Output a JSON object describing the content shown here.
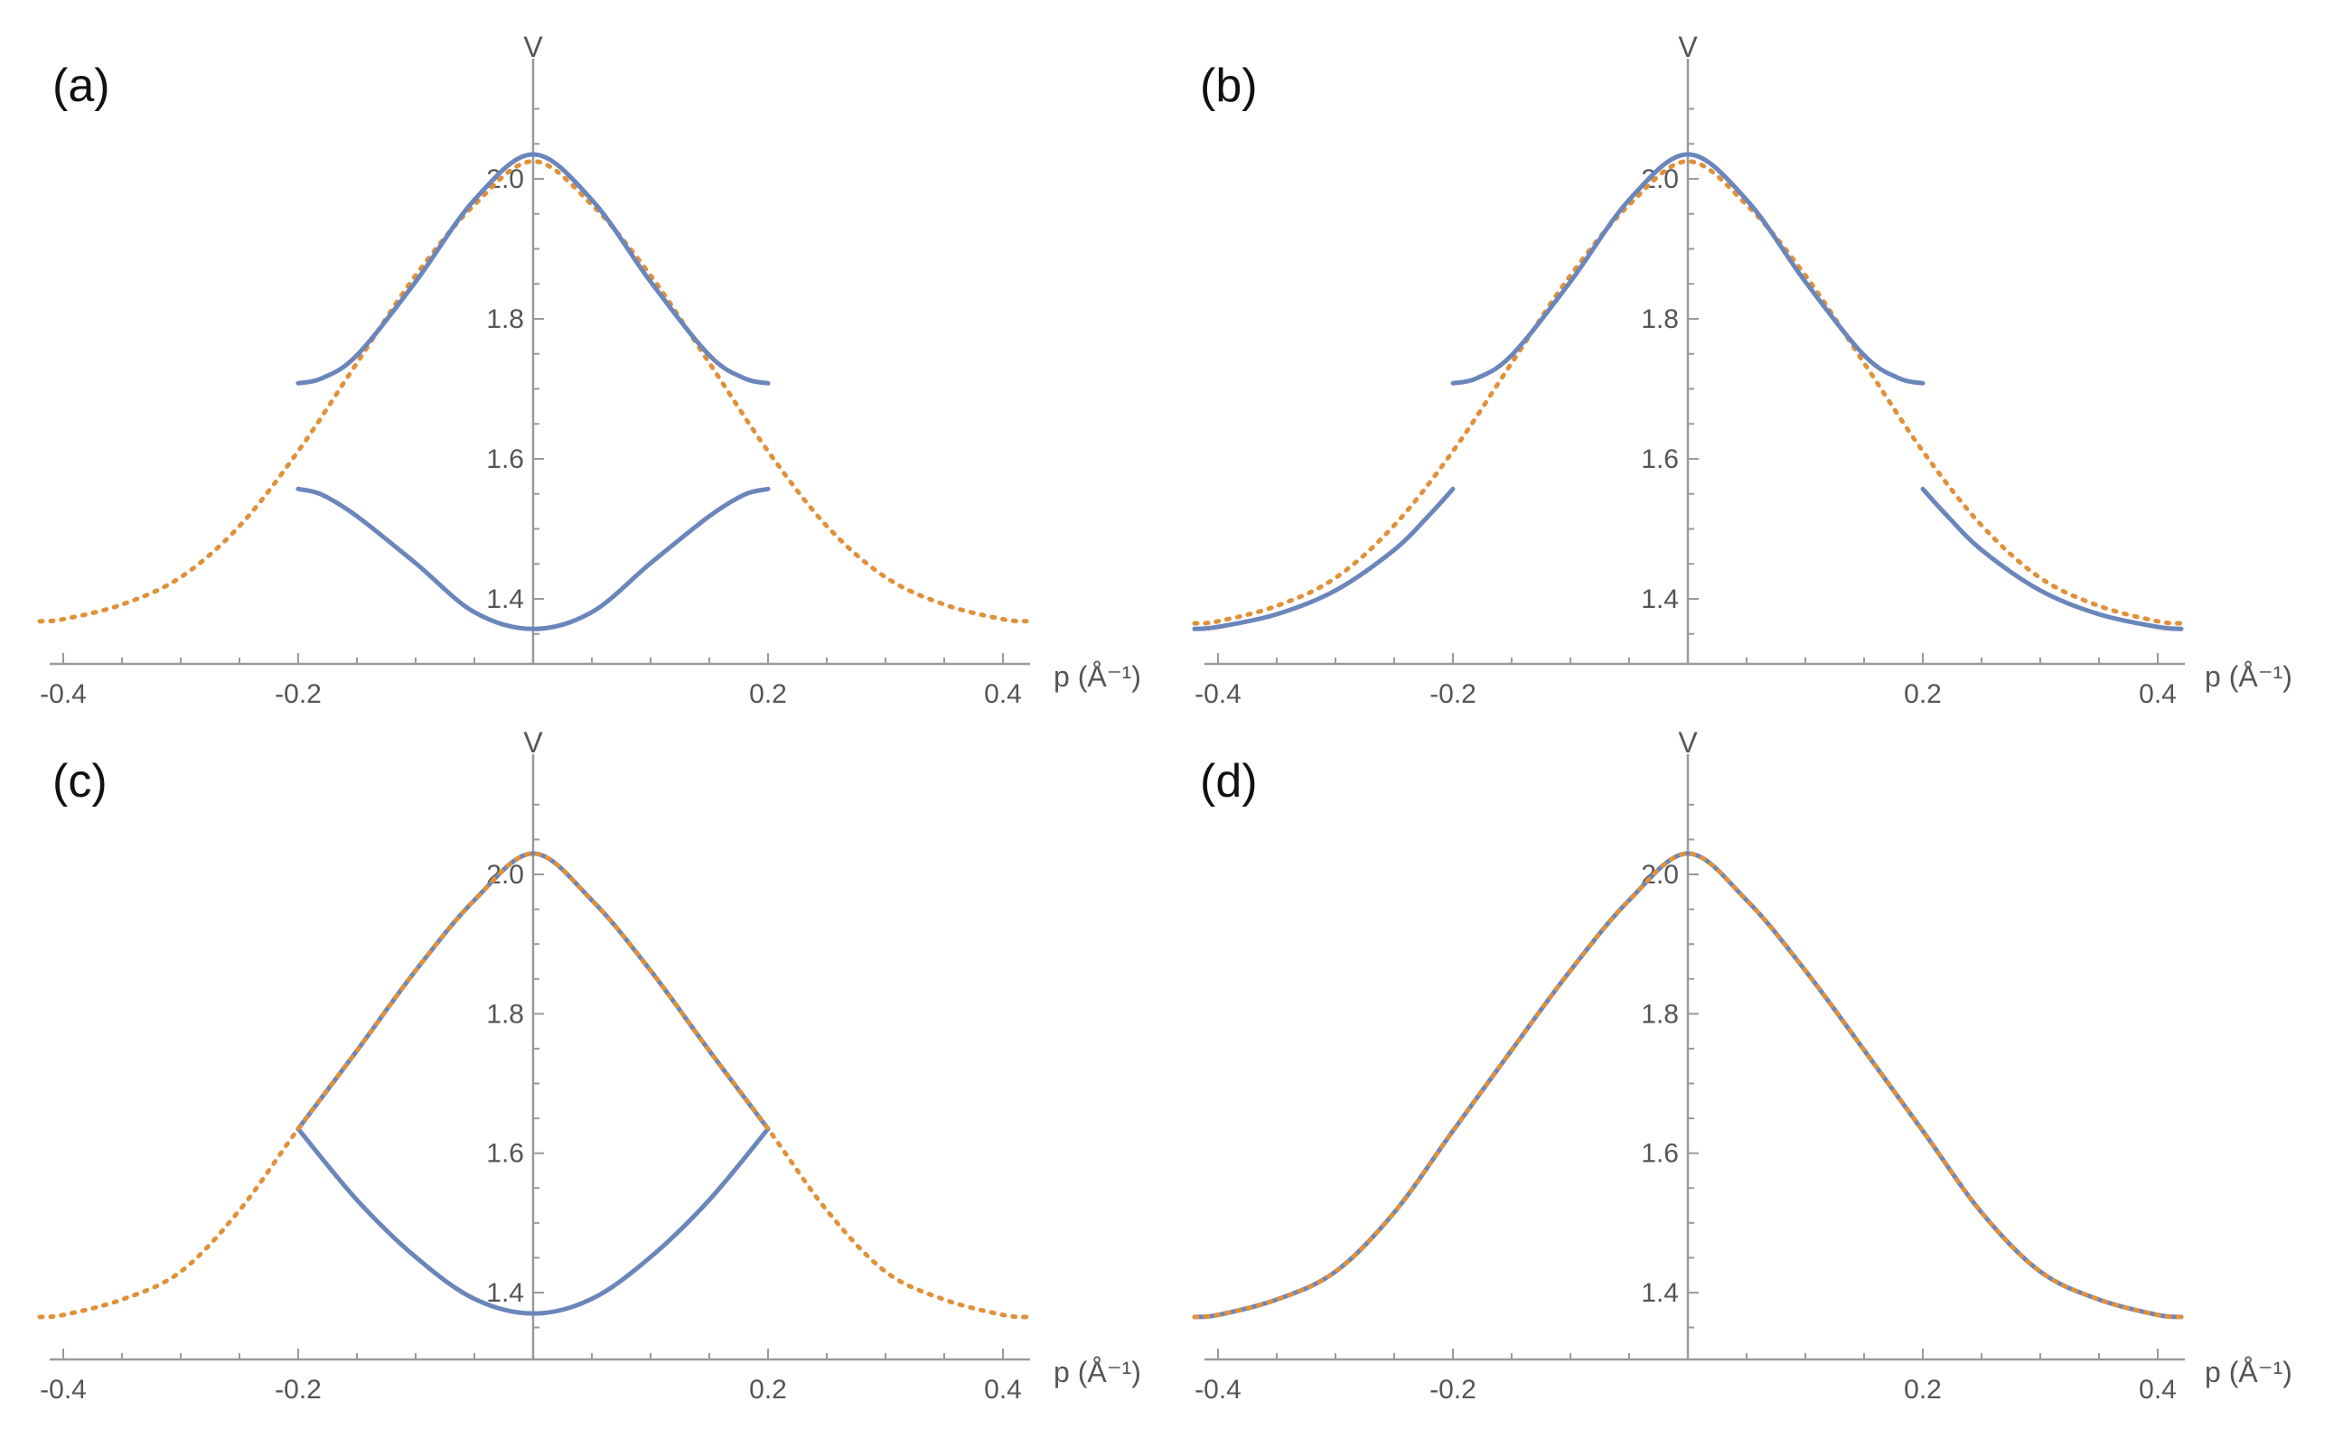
{
  "colors": {
    "blue_solid": "#6a86bb",
    "orange_dotted": "#e0913a",
    "axis": "#9a9a9a",
    "tick_text": "#555555",
    "panel_letter": "#111111"
  },
  "chart_data": [
    {
      "type": "line",
      "panel_label": "(a)",
      "xlabel": "p (Å⁻¹)",
      "ylabel": "V",
      "xlim": [
        -0.42,
        0.42
      ],
      "ylim": [
        1.33,
        2.12
      ],
      "x_ticks": [
        "-0.4",
        "-0.2",
        "0.2",
        "0.4"
      ],
      "y_ticks": [
        "1.4",
        "1.6",
        "1.8",
        "2.0"
      ],
      "grid": false,
      "series": [
        {
          "style": "dotted",
          "color": "#e0913a",
          "segments": [
            [
              [
                -0.42,
                1.368
              ],
              [
                -0.4,
                1.371
              ],
              [
                -0.35,
                1.392
              ],
              [
                -0.3,
                1.431
              ],
              [
                -0.25,
                1.504
              ],
              [
                -0.2,
                1.611
              ],
              [
                -0.15,
                1.737
              ],
              [
                -0.1,
                1.862
              ],
              [
                -0.05,
                1.963
              ],
              [
                0.0,
                2.025
              ],
              [
                0.05,
                1.963
              ],
              [
                0.1,
                1.862
              ],
              [
                0.15,
                1.737
              ],
              [
                0.2,
                1.611
              ],
              [
                0.25,
                1.504
              ],
              [
                0.3,
                1.431
              ],
              [
                0.35,
                1.392
              ],
              [
                0.4,
                1.371
              ],
              [
                0.42,
                1.368
              ]
            ]
          ]
        },
        {
          "style": "solid",
          "color": "#6a86bb",
          "segments": [
            [
              [
                -0.2,
                1.708
              ],
              [
                -0.18,
                1.715
              ],
              [
                -0.15,
                1.748
              ],
              [
                -0.1,
                1.853
              ],
              [
                -0.05,
                1.97
              ],
              [
                0.0,
                2.035
              ],
              [
                0.05,
                1.97
              ],
              [
                0.1,
                1.853
              ],
              [
                0.15,
                1.748
              ],
              [
                0.18,
                1.715
              ],
              [
                0.2,
                1.708
              ]
            ],
            [
              [
                -0.2,
                1.557
              ],
              [
                -0.18,
                1.549
              ],
              [
                -0.15,
                1.518
              ],
              [
                -0.1,
                1.451
              ],
              [
                -0.05,
                1.381
              ],
              [
                0.0,
                1.357
              ],
              [
                0.05,
                1.381
              ],
              [
                0.1,
                1.451
              ],
              [
                0.15,
                1.518
              ],
              [
                0.18,
                1.549
              ],
              [
                0.2,
                1.557
              ]
            ]
          ]
        }
      ]
    },
    {
      "type": "line",
      "panel_label": "(b)",
      "xlabel": "p (Å⁻¹)",
      "ylabel": "V",
      "xlim": [
        -0.42,
        0.42
      ],
      "ylim": [
        1.33,
        2.12
      ],
      "x_ticks": [
        "-0.4",
        "-0.2",
        "0.2",
        "0.4"
      ],
      "y_ticks": [
        "1.4",
        "1.6",
        "1.8",
        "2.0"
      ],
      "grid": false,
      "series": [
        {
          "style": "dotted",
          "color": "#e0913a",
          "segments": [
            [
              [
                -0.42,
                1.365
              ],
              [
                -0.4,
                1.368
              ],
              [
                -0.35,
                1.39
              ],
              [
                -0.3,
                1.43
              ],
              [
                -0.25,
                1.505
              ],
              [
                -0.2,
                1.611
              ],
              [
                -0.15,
                1.737
              ],
              [
                -0.1,
                1.862
              ],
              [
                -0.05,
                1.963
              ],
              [
                0.0,
                2.025
              ],
              [
                0.05,
                1.963
              ],
              [
                0.1,
                1.862
              ],
              [
                0.15,
                1.737
              ],
              [
                0.2,
                1.611
              ],
              [
                0.25,
                1.505
              ],
              [
                0.3,
                1.43
              ],
              [
                0.35,
                1.39
              ],
              [
                0.4,
                1.368
              ],
              [
                0.42,
                1.365
              ]
            ]
          ]
        },
        {
          "style": "solid",
          "color": "#6a86bb",
          "segments": [
            [
              [
                -0.2,
                1.708
              ],
              [
                -0.18,
                1.715
              ],
              [
                -0.15,
                1.748
              ],
              [
                -0.1,
                1.853
              ],
              [
                -0.05,
                1.97
              ],
              [
                0.0,
                2.035
              ],
              [
                0.05,
                1.97
              ],
              [
                0.1,
                1.853
              ],
              [
                0.15,
                1.748
              ],
              [
                0.18,
                1.715
              ],
              [
                0.2,
                1.708
              ]
            ],
            [
              [
                -0.42,
                1.357
              ],
              [
                -0.4,
                1.36
              ],
              [
                -0.35,
                1.378
              ],
              [
                -0.3,
                1.412
              ],
              [
                -0.25,
                1.47
              ],
              [
                -0.22,
                1.52
              ],
              [
                -0.2,
                1.557
              ]
            ],
            [
              [
                0.2,
                1.557
              ],
              [
                0.22,
                1.52
              ],
              [
                0.25,
                1.47
              ],
              [
                0.3,
                1.412
              ],
              [
                0.35,
                1.378
              ],
              [
                0.4,
                1.36
              ],
              [
                0.42,
                1.357
              ]
            ]
          ]
        }
      ]
    },
    {
      "type": "line",
      "panel_label": "(c)",
      "xlabel": "p (Å⁻¹)",
      "ylabel": "V",
      "xlim": [
        -0.42,
        0.42
      ],
      "ylim": [
        1.33,
        2.12
      ],
      "x_ticks": [
        "-0.4",
        "-0.2",
        "0.2",
        "0.4"
      ],
      "y_ticks": [
        "1.4",
        "1.6",
        "1.8",
        "2.0"
      ],
      "grid": false,
      "series": [
        {
          "style": "solid",
          "color": "#6a86bb",
          "segments": [
            [
              [
                -0.2,
                1.635
              ],
              [
                -0.15,
                1.747
              ],
              [
                -0.1,
                1.862
              ],
              [
                -0.05,
                1.963
              ],
              [
                0.0,
                2.03
              ],
              [
                0.05,
                1.963
              ],
              [
                0.1,
                1.862
              ],
              [
                0.15,
                1.747
              ],
              [
                0.2,
                1.635
              ]
            ],
            [
              [
                -0.2,
                1.635
              ],
              [
                -0.15,
                1.533
              ],
              [
                -0.1,
                1.451
              ],
              [
                -0.05,
                1.391
              ],
              [
                0.0,
                1.37
              ],
              [
                0.05,
                1.391
              ],
              [
                0.1,
                1.451
              ],
              [
                0.15,
                1.533
              ],
              [
                0.2,
                1.635
              ]
            ]
          ]
        },
        {
          "style": "dotted",
          "color": "#e0913a",
          "segments": [
            [
              [
                -0.42,
                1.365
              ],
              [
                -0.4,
                1.368
              ],
              [
                -0.35,
                1.39
              ],
              [
                -0.3,
                1.43
              ],
              [
                -0.25,
                1.518
              ],
              [
                -0.2,
                1.635
              ],
              [
                -0.15,
                1.747
              ],
              [
                -0.1,
                1.862
              ],
              [
                -0.05,
                1.963
              ],
              [
                0.0,
                2.03
              ],
              [
                0.05,
                1.963
              ],
              [
                0.1,
                1.862
              ],
              [
                0.15,
                1.747
              ],
              [
                0.2,
                1.635
              ],
              [
                0.25,
                1.518
              ],
              [
                0.3,
                1.43
              ],
              [
                0.35,
                1.39
              ],
              [
                0.4,
                1.368
              ],
              [
                0.42,
                1.365
              ]
            ]
          ]
        }
      ]
    },
    {
      "type": "line",
      "panel_label": "(d)",
      "xlabel": "p (Å⁻¹)",
      "ylabel": "V",
      "xlim": [
        -0.42,
        0.42
      ],
      "ylim": [
        1.33,
        2.12
      ],
      "x_ticks": [
        "-0.4",
        "-0.2",
        "0.2",
        "0.4"
      ],
      "y_ticks": [
        "1.4",
        "1.6",
        "1.8",
        "2.0"
      ],
      "grid": false,
      "series": [
        {
          "style": "solid",
          "color": "#6a86bb",
          "segments": [
            [
              [
                -0.42,
                1.365
              ],
              [
                -0.4,
                1.368
              ],
              [
                -0.35,
                1.39
              ],
              [
                -0.3,
                1.43
              ],
              [
                -0.25,
                1.515
              ],
              [
                -0.2,
                1.632
              ],
              [
                -0.15,
                1.748
              ],
              [
                -0.1,
                1.862
              ],
              [
                -0.05,
                1.963
              ],
              [
                0.0,
                2.03
              ],
              [
                0.05,
                1.963
              ],
              [
                0.1,
                1.862
              ],
              [
                0.15,
                1.748
              ],
              [
                0.2,
                1.632
              ],
              [
                0.25,
                1.515
              ],
              [
                0.3,
                1.43
              ],
              [
                0.35,
                1.39
              ],
              [
                0.4,
                1.368
              ],
              [
                0.42,
                1.365
              ]
            ]
          ]
        },
        {
          "style": "dotted",
          "color": "#e0913a",
          "segments": [
            [
              [
                -0.42,
                1.365
              ],
              [
                -0.4,
                1.368
              ],
              [
                -0.35,
                1.39
              ],
              [
                -0.3,
                1.43
              ],
              [
                -0.25,
                1.515
              ],
              [
                -0.2,
                1.632
              ],
              [
                -0.15,
                1.748
              ],
              [
                -0.1,
                1.862
              ],
              [
                -0.05,
                1.963
              ],
              [
                0.0,
                2.03
              ],
              [
                0.05,
                1.963
              ],
              [
                0.1,
                1.862
              ],
              [
                0.15,
                1.748
              ],
              [
                0.2,
                1.632
              ],
              [
                0.25,
                1.515
              ],
              [
                0.3,
                1.43
              ],
              [
                0.35,
                1.39
              ],
              [
                0.4,
                1.368
              ],
              [
                0.42,
                1.365
              ]
            ]
          ]
        }
      ]
    }
  ]
}
